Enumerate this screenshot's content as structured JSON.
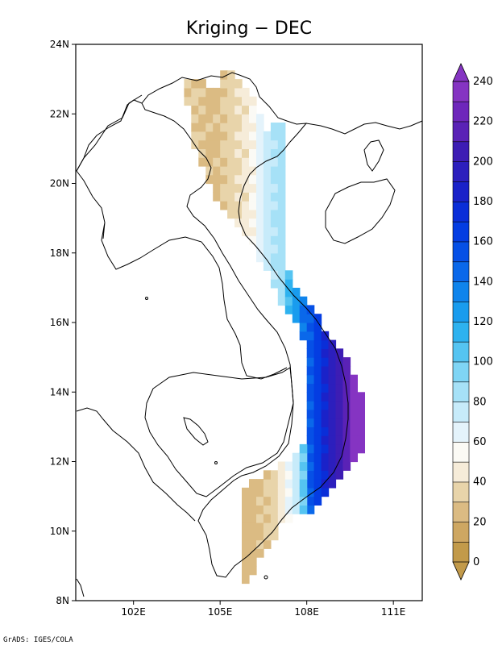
{
  "title": "Kriging − DEC",
  "credit": "GrADS: IGES/COLA",
  "x_ticks": [
    "102E",
    "105E",
    "108E",
    "111E"
  ],
  "y_ticks": [
    "8N",
    "10N",
    "12N",
    "14N",
    "16N",
    "18N",
    "20N",
    "22N",
    "24N"
  ],
  "colorbar": {
    "labels": [
      "0",
      "20",
      "40",
      "60",
      "80",
      "100",
      "120",
      "140",
      "160",
      "180",
      "200",
      "220",
      "240"
    ],
    "colors": [
      "#c29a4a",
      "#cea762",
      "#dbbb83",
      "#e8d4aa",
      "#f6ecd9",
      "#fbfaf5",
      "#e4f3fb",
      "#c7ebfa",
      "#a6e1f7",
      "#7fd5f5",
      "#55c4f1",
      "#2eb2ef",
      "#199cee",
      "#0f84ec",
      "#0a68ea",
      "#0650e6",
      "#043de2",
      "#0a2ed8",
      "#1a22c9",
      "#2c1fbd",
      "#3d1db4",
      "#5a22b6",
      "#6e27bb",
      "#8534c2"
    ]
  },
  "map_data": {
    "variable": "Kriging − DEC",
    "lon_range": [
      100.0,
      112.0
    ],
    "lat_range": [
      8.0,
      24.0
    ],
    "grid_step": 0.25,
    "data_columns": [
      [
        103.75,
        22.25,
        22.75,
        30
      ],
      [
        104.0,
        21.0,
        22.75,
        30
      ],
      [
        104.25,
        20.5,
        22.75,
        28
      ],
      [
        104.5,
        20.0,
        22.5,
        26
      ],
      [
        104.75,
        19.5,
        22.5,
        27
      ],
      [
        105.0,
        19.25,
        23.0,
        30
      ],
      [
        105.25,
        19.0,
        23.0,
        35
      ],
      [
        105.5,
        18.75,
        22.75,
        38
      ],
      [
        105.75,
        18.5,
        22.5,
        42
      ],
      [
        106.0,
        18.25,
        22.25,
        50
      ],
      [
        106.25,
        17.75,
        21.75,
        65
      ],
      [
        106.5,
        17.5,
        21.25,
        75
      ],
      [
        106.75,
        17.0,
        21.5,
        80
      ],
      [
        107.0,
        16.5,
        21.5,
        85
      ],
      [
        107.25,
        16.25,
        17.25,
        110
      ],
      [
        107.5,
        16.0,
        16.75,
        125
      ],
      [
        107.75,
        15.5,
        16.5,
        140
      ],
      [
        108.0,
        10.5,
        16.25,
        150
      ],
      [
        108.25,
        10.75,
        16.0,
        165
      ],
      [
        108.5,
        11.0,
        15.5,
        180
      ],
      [
        108.75,
        11.25,
        15.25,
        195
      ],
      [
        109.0,
        11.5,
        15.0,
        205
      ],
      [
        109.25,
        11.75,
        14.75,
        215
      ],
      [
        109.5,
        12.0,
        14.25,
        235
      ],
      [
        109.75,
        12.25,
        13.75,
        245
      ],
      [
        105.75,
        8.5,
        11.0,
        25
      ],
      [
        106.0,
        8.75,
        11.25,
        25
      ],
      [
        106.25,
        9.25,
        11.25,
        28
      ],
      [
        106.5,
        9.5,
        11.5,
        30
      ],
      [
        106.75,
        9.75,
        11.5,
        35
      ],
      [
        107.0,
        10.25,
        11.75,
        45
      ],
      [
        107.25,
        10.25,
        11.75,
        60
      ],
      [
        107.5,
        10.5,
        12.0,
        75
      ],
      [
        107.75,
        10.5,
        12.25,
        100
      ]
    ]
  }
}
